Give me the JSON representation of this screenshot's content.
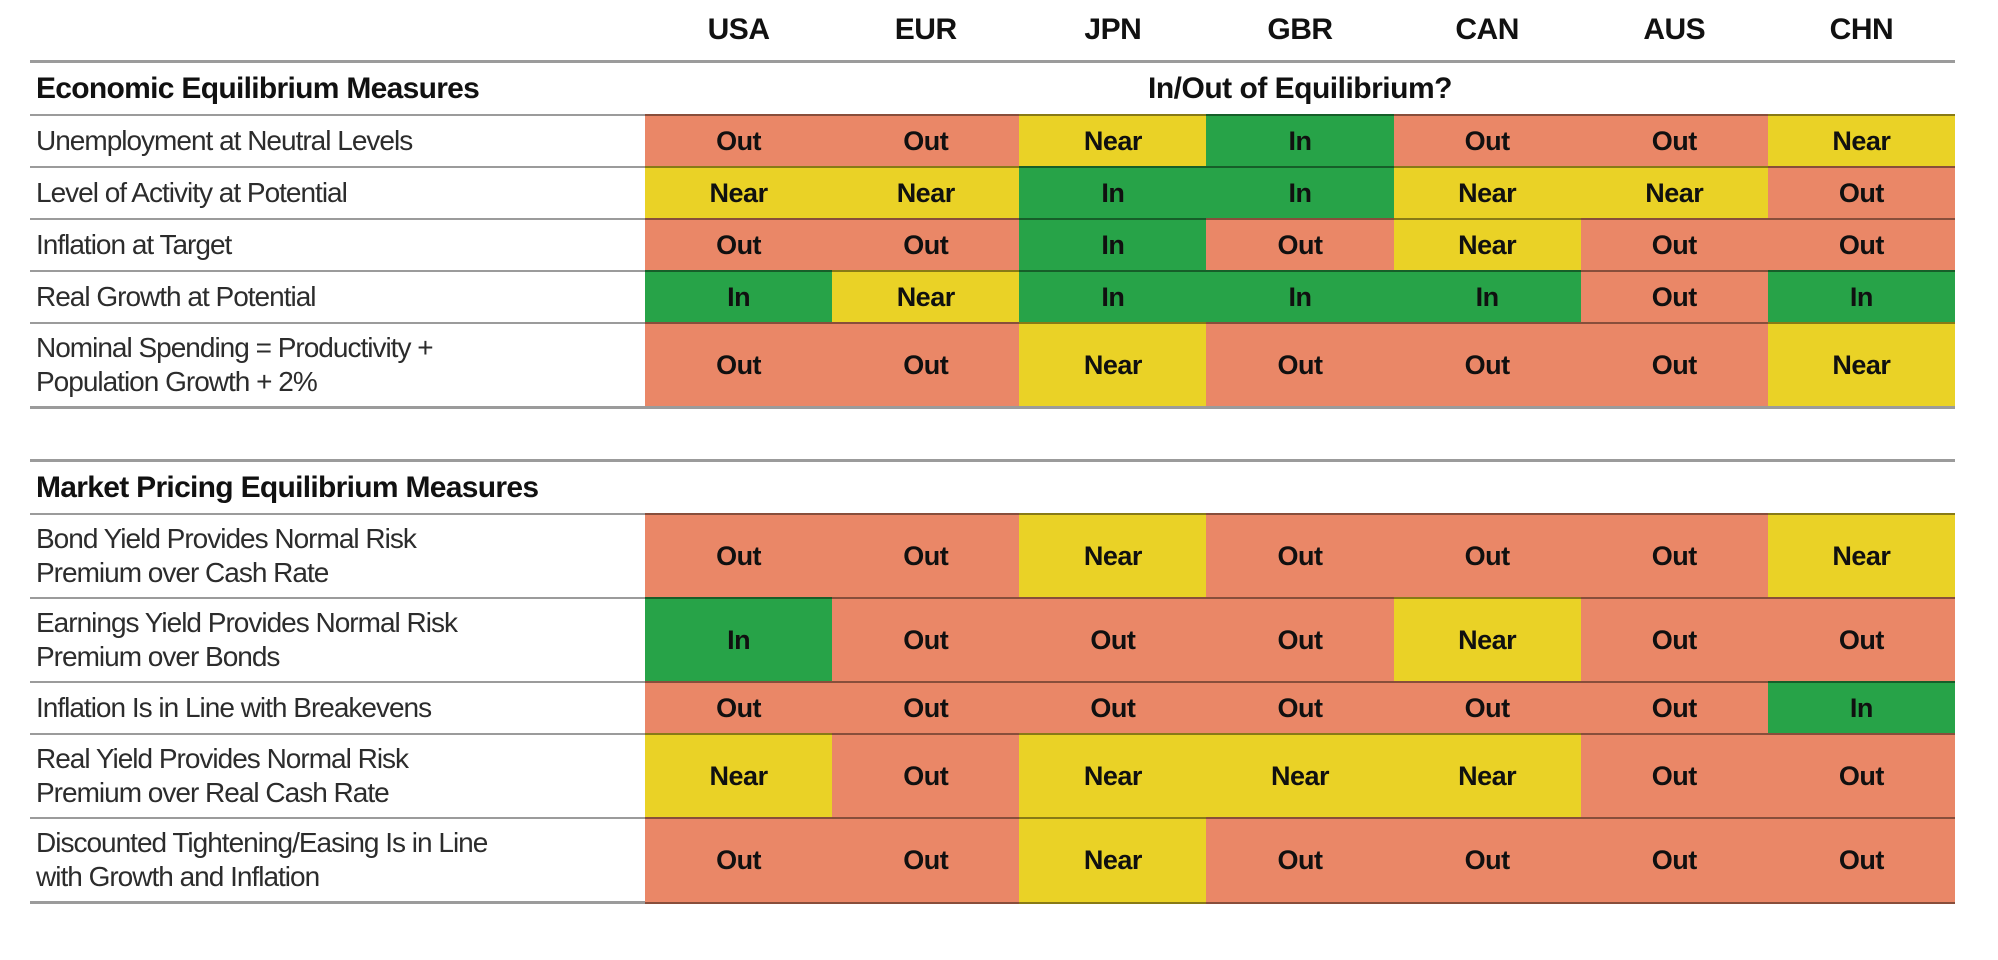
{
  "chart_data": {
    "type": "heatmap",
    "title": "",
    "columns": [
      "USA",
      "EUR",
      "JPN",
      "GBR",
      "CAN",
      "AUS",
      "CHN"
    ],
    "status_colors": {
      "In": "#27A348",
      "Near": "#EAD226",
      "Out": "#EA8767"
    },
    "sections": [
      {
        "title": "Economic Equilibrium Measures",
        "subtitle": "In/Out of Equilibrium?",
        "rows": [
          {
            "label": "Unemployment at Neutral Levels",
            "values": [
              "Out",
              "Out",
              "Near",
              "In",
              "Out",
              "Out",
              "Near"
            ]
          },
          {
            "label": "Level of Activity at Potential",
            "values": [
              "Near",
              "Near",
              "In",
              "In",
              "Near",
              "Near",
              "Out"
            ]
          },
          {
            "label": "Inflation at Target",
            "values": [
              "Out",
              "Out",
              "In",
              "Out",
              "Near",
              "Out",
              "Out"
            ]
          },
          {
            "label": "Real Growth at Potential",
            "values": [
              "In",
              "Near",
              "In",
              "In",
              "In",
              "Out",
              "In"
            ]
          },
          {
            "label": "Nominal Spending = Productivity + Population Growth + 2%",
            "values": [
              "Out",
              "Out",
              "Near",
              "Out",
              "Out",
              "Out",
              "Near"
            ]
          }
        ]
      },
      {
        "title": "Market Pricing Equilibrium Measures",
        "subtitle": "",
        "rows": [
          {
            "label": "Bond Yield Provides Normal Risk Premium over Cash Rate",
            "values": [
              "Out",
              "Out",
              "Near",
              "Out",
              "Out",
              "Out",
              "Near"
            ]
          },
          {
            "label": "Earnings Yield Provides Normal Risk Premium over Bonds",
            "values": [
              "In",
              "Out",
              "Out",
              "Out",
              "Near",
              "Out",
              "Out"
            ]
          },
          {
            "label": "Inflation Is in Line with Breakevens",
            "values": [
              "Out",
              "Out",
              "Out",
              "Out",
              "Out",
              "Out",
              "In"
            ]
          },
          {
            "label": "Real Yield Provides Normal Risk Premium over Real Cash Rate",
            "values": [
              "Near",
              "Out",
              "Near",
              "Near",
              "Near",
              "Out",
              "Out"
            ]
          },
          {
            "label": "Discounted Tightening/Easing Is in Line with Growth and Inflation",
            "values": [
              "Out",
              "Out",
              "Near",
              "Out",
              "Out",
              "Out",
              "Out"
            ]
          }
        ]
      }
    ]
  }
}
